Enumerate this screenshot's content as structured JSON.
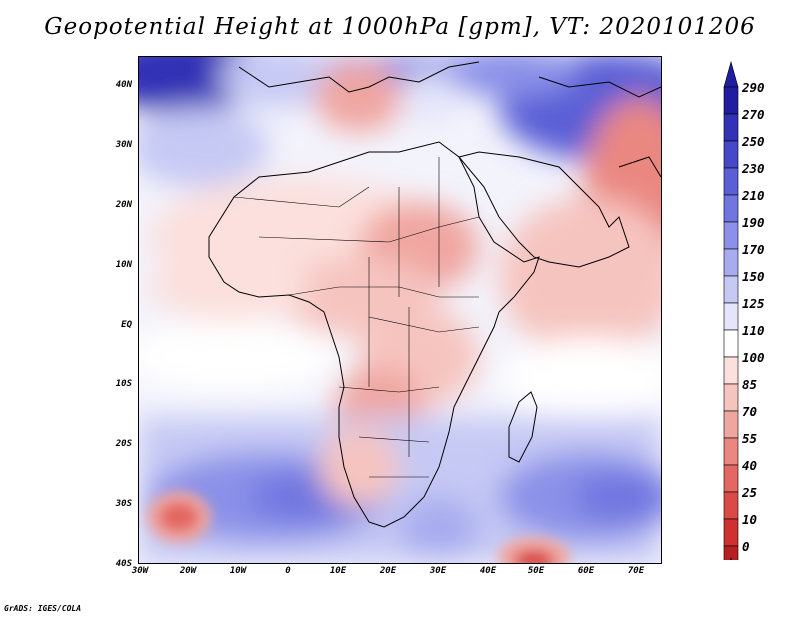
{
  "title": "Geopotential Height at 1000hPa [gpm], VT: 2020101206",
  "footer": "GrADS: IGES/COLA",
  "lat_labels": [
    "40N",
    "30N",
    "20N",
    "10N",
    "EQ",
    "10S",
    "20S",
    "30S",
    "40S"
  ],
  "lon_labels": [
    "30W",
    "20W",
    "10W",
    "0",
    "10E",
    "20E",
    "30E",
    "40E",
    "50E",
    "60E",
    "70E"
  ],
  "colorbar": {
    "labels": [
      "290",
      "270",
      "250",
      "230",
      "210",
      "190",
      "170",
      "150",
      "125",
      "110",
      "100",
      "85",
      "70",
      "55",
      "40",
      "25",
      "10",
      "0"
    ],
    "colors": [
      "#201ea0",
      "#3132b6",
      "#4548c8",
      "#5a5fd6",
      "#6f76e0",
      "#8b91e8",
      "#a7acef",
      "#c6c9f4",
      "#e4e5fa",
      "#ffffff",
      "#fbe0dd",
      "#f6c4bf",
      "#f0a6a0",
      "#ea8781",
      "#e36863",
      "#da4a47",
      "#cf3030",
      "#b81f22"
    ]
  },
  "colors": {
    "land_outline": "#000000"
  }
}
